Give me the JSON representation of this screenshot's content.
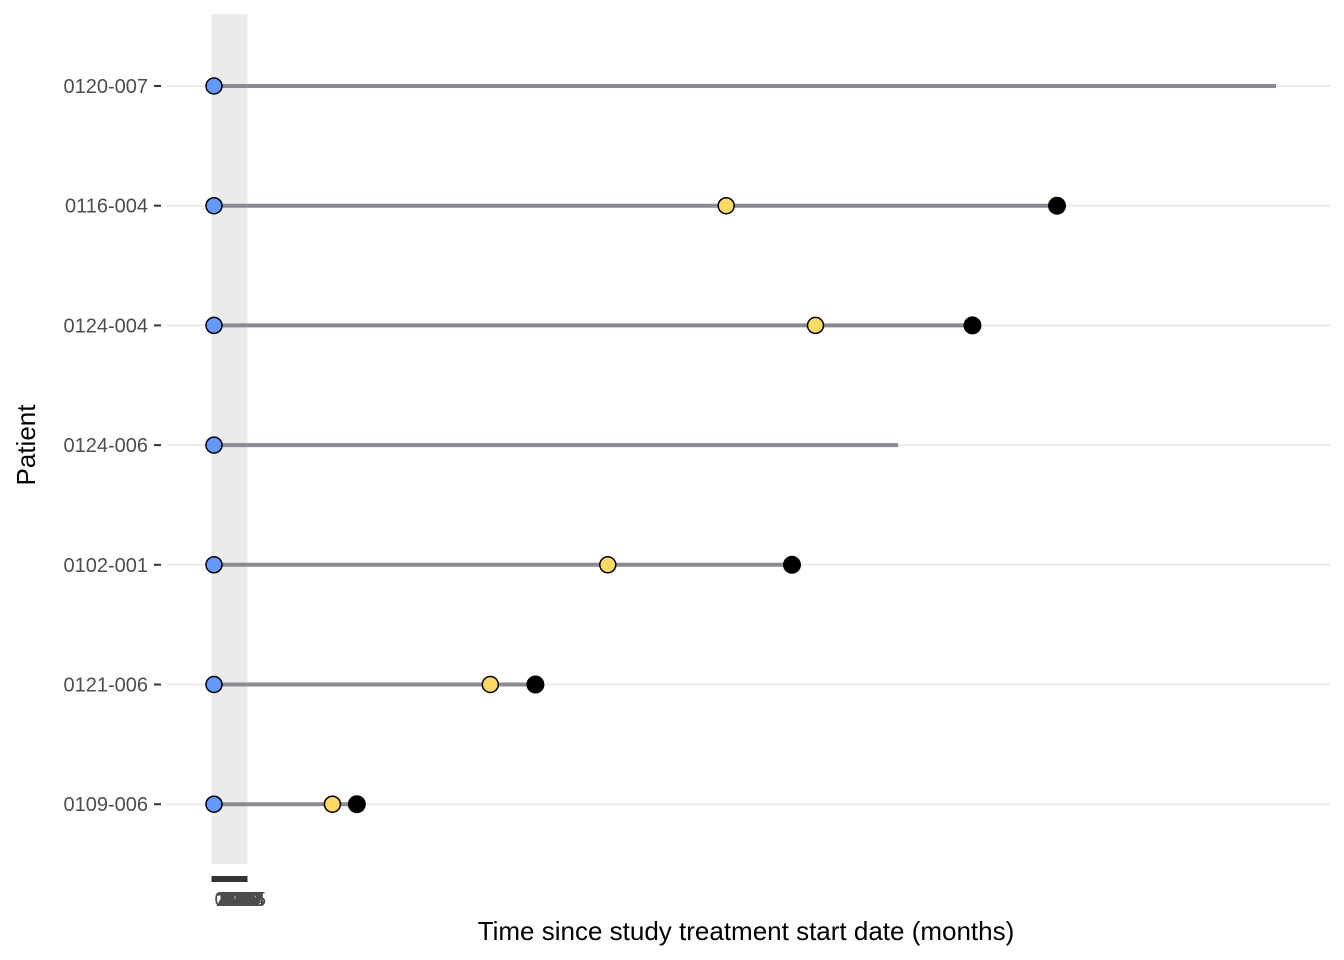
{
  "chart_data": {
    "type": "scatter",
    "xlabel": "Time since study treatment start date (months)",
    "ylabel": "Patient",
    "x_ticks": [
      "0",
      "1",
      "2",
      "3",
      "4",
      "5",
      "6",
      "7",
      "8",
      "9",
      "10",
      "11",
      "12",
      "13",
      "14",
      "15",
      "16",
      "17",
      "18",
      "19",
      "20",
      "21",
      "22",
      "23",
      "24",
      "25",
      "26",
      "27",
      "28",
      "29",
      "30",
      "31",
      "32",
      "33",
      "34",
      "35"
    ],
    "xlim": [
      0,
      1130
    ],
    "grid": true,
    "legend": "none",
    "patients": [
      {
        "id": "0120-007",
        "segment_end": 1130,
        "events": [
          {
            "type": "start",
            "x": 0,
            "color": "#6699ff"
          }
        ]
      },
      {
        "id": "0116-004",
        "segment_end": 897,
        "events": [
          {
            "type": "start",
            "x": 0,
            "color": "#6699ff"
          },
          {
            "type": "event",
            "x": 545,
            "color": "#ffd966"
          },
          {
            "type": "end",
            "x": 897,
            "color": "#000000"
          }
        ]
      },
      {
        "id": "0124-004",
        "segment_end": 807,
        "events": [
          {
            "type": "start",
            "x": 0,
            "color": "#6699ff"
          },
          {
            "type": "event",
            "x": 640,
            "color": "#ffd966"
          },
          {
            "type": "end",
            "x": 807,
            "color": "#000000"
          }
        ]
      },
      {
        "id": "0124-006",
        "segment_end": 728,
        "events": [
          {
            "type": "start",
            "x": 0,
            "color": "#6699ff"
          }
        ]
      },
      {
        "id": "0102-001",
        "segment_end": 615,
        "events": [
          {
            "type": "start",
            "x": 0,
            "color": "#6699ff"
          },
          {
            "type": "event",
            "x": 419,
            "color": "#ffd966"
          },
          {
            "type": "end",
            "x": 615,
            "color": "#000000"
          }
        ]
      },
      {
        "id": "0121-006",
        "segment_end": 342,
        "events": [
          {
            "type": "start",
            "x": 0,
            "color": "#6699ff"
          },
          {
            "type": "event",
            "x": 294,
            "color": "#ffd966"
          },
          {
            "type": "end",
            "x": 342,
            "color": "#000000"
          }
        ]
      },
      {
        "id": "0109-006",
        "segment_end": 152,
        "events": [
          {
            "type": "start",
            "x": 0,
            "color": "#6699ff"
          },
          {
            "type": "event",
            "x": 126,
            "color": "#ffd966"
          },
          {
            "type": "end",
            "x": 152,
            "color": "#000000"
          }
        ]
      }
    ],
    "colors": {
      "segment": "#8a8a94",
      "grid": "#ebebeb",
      "start": "#6699ff",
      "event": "#ffd966",
      "end": "#000000"
    }
  }
}
